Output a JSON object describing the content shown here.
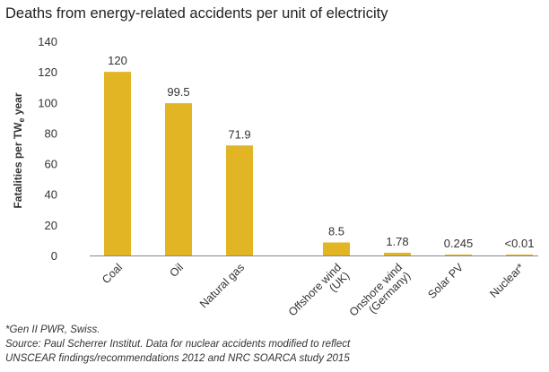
{
  "chart_data": {
    "type": "bar",
    "title": "Deaths from energy-related accidents per unit of electricity",
    "ylabel_main": "Fatalities per TW",
    "ylabel_sub": "e",
    "ylabel_end": " year",
    "ylim": [
      0,
      140
    ],
    "yticks": [
      "0",
      "20",
      "40",
      "60",
      "80",
      "100",
      "120",
      "140"
    ],
    "grid": false,
    "bar_color": "#E2B524",
    "categories": [
      [
        "Coal"
      ],
      [
        "Oil"
      ],
      [
        "Natural gas"
      ],
      [
        "Offshore wind",
        "(UK)"
      ],
      [
        "Onshore wind",
        "(Germany)"
      ],
      [
        "Solar PV"
      ],
      [
        "Nuclear*"
      ]
    ],
    "values": [
      120,
      99.5,
      71.9,
      8.5,
      1.78,
      0.245,
      0.01
    ],
    "value_labels": [
      "120",
      "99.5",
      "71.9",
      "8.5",
      "1.78",
      "0.245",
      "<0.01"
    ]
  },
  "footnotes": {
    "note": "*Gen II PWR, Swiss.",
    "source_line1": "Source: Paul Scherrer Institut. Data for nuclear accidents modified to reflect",
    "source_line2": "UNSCEAR findings/recommendations 2012 and NRC SOARCA study 2015"
  }
}
